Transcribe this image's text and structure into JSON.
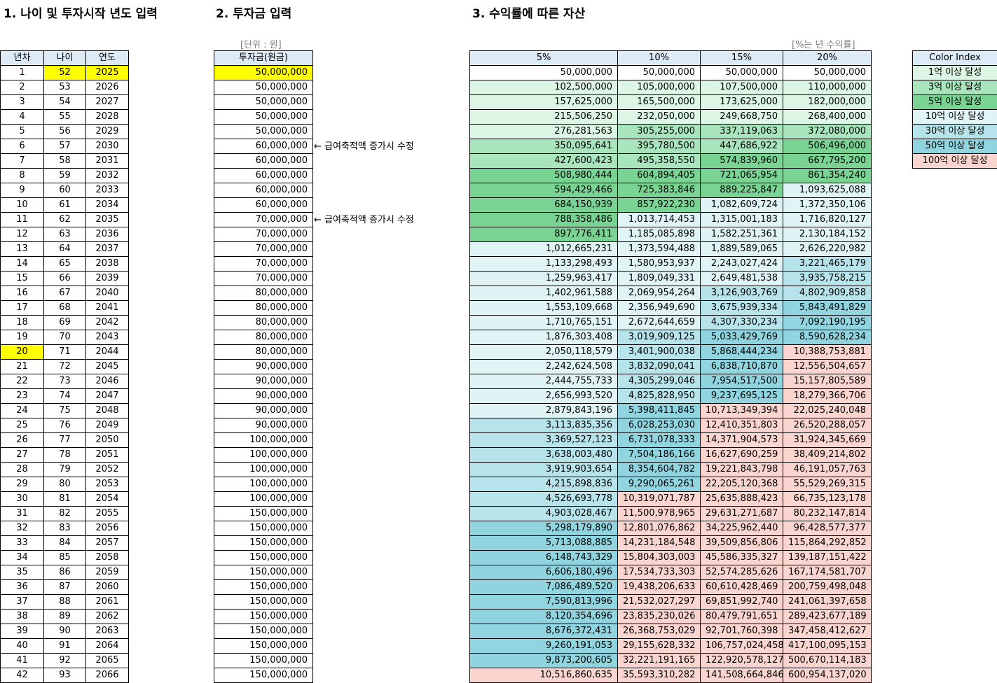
{
  "titles": {
    "section1": "1. 나이 및 투자시작 년도 입력",
    "section2": "2. 투자금 입력",
    "section3": "3. 수익률에 따른 자산"
  },
  "units": {
    "unit_won": "[단위 : 원]",
    "unit_rate": "[%는 년 수익률]"
  },
  "table1": {
    "headers": [
      "년차",
      "나이",
      "연도"
    ],
    "highlight_color": "#ffff00",
    "rows": [
      [
        "1",
        "52",
        "2025"
      ],
      [
        "2",
        "53",
        "2026"
      ],
      [
        "3",
        "54",
        "2027"
      ],
      [
        "4",
        "55",
        "2028"
      ],
      [
        "5",
        "56",
        "2029"
      ],
      [
        "6",
        "57",
        "2030"
      ],
      [
        "7",
        "58",
        "2031"
      ],
      [
        "8",
        "59",
        "2032"
      ],
      [
        "9",
        "60",
        "2033"
      ],
      [
        "10",
        "61",
        "2034"
      ],
      [
        "11",
        "62",
        "2035"
      ],
      [
        "12",
        "63",
        "2036"
      ],
      [
        "13",
        "64",
        "2037"
      ],
      [
        "14",
        "65",
        "2038"
      ],
      [
        "15",
        "66",
        "2039"
      ],
      [
        "16",
        "67",
        "2040"
      ],
      [
        "17",
        "68",
        "2041"
      ],
      [
        "18",
        "69",
        "2042"
      ],
      [
        "19",
        "70",
        "2043"
      ],
      [
        "20",
        "71",
        "2044"
      ],
      [
        "21",
        "72",
        "2045"
      ],
      [
        "22",
        "73",
        "2046"
      ],
      [
        "23",
        "74",
        "2047"
      ],
      [
        "24",
        "75",
        "2048"
      ],
      [
        "25",
        "76",
        "2049"
      ],
      [
        "26",
        "77",
        "2050"
      ],
      [
        "27",
        "78",
        "2051"
      ],
      [
        "28",
        "79",
        "2052"
      ],
      [
        "29",
        "80",
        "2053"
      ],
      [
        "30",
        "81",
        "2054"
      ],
      [
        "31",
        "82",
        "2055"
      ],
      [
        "32",
        "83",
        "2056"
      ],
      [
        "33",
        "84",
        "2057"
      ],
      [
        "34",
        "85",
        "2058"
      ],
      [
        "35",
        "86",
        "2059"
      ],
      [
        "36",
        "87",
        "2060"
      ],
      [
        "37",
        "88",
        "2061"
      ],
      [
        "38",
        "89",
        "2062"
      ],
      [
        "39",
        "90",
        "2063"
      ],
      [
        "40",
        "91",
        "2064"
      ],
      [
        "41",
        "92",
        "2065"
      ],
      [
        "42",
        "93",
        "2066"
      ]
    ]
  },
  "table2": {
    "header": "투자금(원금)",
    "values": [
      "50,000,000",
      "50,000,000",
      "50,000,000",
      "50,000,000",
      "50,000,000",
      "60,000,000",
      "60,000,000",
      "60,000,000",
      "60,000,000",
      "60,000,000",
      "70,000,000",
      "70,000,000",
      "70,000,000",
      "70,000,000",
      "70,000,000",
      "80,000,000",
      "80,000,000",
      "80,000,000",
      "80,000,000",
      "80,000,000",
      "90,000,000",
      "90,000,000",
      "90,000,000",
      "90,000,000",
      "90,000,000",
      "100,000,000",
      "100,000,000",
      "100,000,000",
      "100,000,000",
      "100,000,000",
      "150,000,000",
      "150,000,000",
      "150,000,000",
      "150,000,000",
      "150,000,000",
      "150,000,000",
      "150,000,000",
      "150,000,000",
      "150,000,000",
      "150,000,000",
      "150,000,000",
      "150,000,000"
    ],
    "notes": [
      "← 급여축적액 증가시 수정",
      "← 급여축적액 증가시 수정"
    ]
  },
  "table3": {
    "headers": [
      "5%",
      "10%",
      "15%",
      "20%"
    ],
    "rows": [
      [
        "50,000,000",
        "50,000,000",
        "50,000,000",
        "50,000,000"
      ],
      [
        "102,500,000",
        "105,000,000",
        "107,500,000",
        "110,000,000"
      ],
      [
        "157,625,000",
        "165,500,000",
        "173,625,000",
        "182,000,000"
      ],
      [
        "215,506,250",
        "232,050,000",
        "249,668,750",
        "268,400,000"
      ],
      [
        "276,281,563",
        "305,255,000",
        "337,119,063",
        "372,080,000"
      ],
      [
        "350,095,641",
        "395,780,500",
        "447,686,922",
        "506,496,000"
      ],
      [
        "427,600,423",
        "495,358,550",
        "574,839,960",
        "667,795,200"
      ],
      [
        "508,980,444",
        "604,894,405",
        "721,065,954",
        "861,354,240"
      ],
      [
        "594,429,466",
        "725,383,846",
        "889,225,847",
        "1,093,625,088"
      ],
      [
        "684,150,939",
        "857,922,230",
        "1,082,609,724",
        "1,372,350,106"
      ],
      [
        "788,358,486",
        "1,013,714,453",
        "1,315,001,183",
        "1,716,820,127"
      ],
      [
        "897,776,411",
        "1,185,085,898",
        "1,582,251,361",
        "2,130,184,152"
      ],
      [
        "1,012,665,231",
        "1,373,594,488",
        "1,889,589,065",
        "2,626,220,982"
      ],
      [
        "1,133,298,493",
        "1,580,953,937",
        "2,243,027,424",
        "3,221,465,179"
      ],
      [
        "1,259,963,417",
        "1,809,049,331",
        "2,649,481,538",
        "3,935,758,215"
      ],
      [
        "1,402,961,588",
        "2,069,954,264",
        "3,126,903,769",
        "4,802,909,858"
      ],
      [
        "1,553,109,668",
        "2,356,949,690",
        "3,675,939,334",
        "5,843,491,829"
      ],
      [
        "1,710,765,151",
        "2,672,644,659",
        "4,307,330,234",
        "7,092,190,195"
      ],
      [
        "1,876,303,408",
        "3,019,909,125",
        "5,033,429,769",
        "8,590,628,234"
      ],
      [
        "2,050,118,579",
        "3,401,900,038",
        "5,868,444,234",
        "10,388,753,881"
      ],
      [
        "2,242,624,508",
        "3,832,090,041",
        "6,838,710,870",
        "12,556,504,657"
      ],
      [
        "2,444,755,733",
        "4,305,299,046",
        "7,954,517,500",
        "15,157,805,589"
      ],
      [
        "2,656,993,520",
        "4,825,828,950",
        "9,237,695,125",
        "18,279,366,706"
      ],
      [
        "2,879,843,196",
        "5,398,411,845",
        "10,713,349,394",
        "22,025,240,048"
      ],
      [
        "3,113,835,356",
        "6,028,253,030",
        "12,410,351,803",
        "26,520,288,057"
      ],
      [
        "3,369,527,123",
        "6,731,078,333",
        "14,371,904,573",
        "31,924,345,669"
      ],
      [
        "3,638,003,480",
        "7,504,186,166",
        "16,627,690,259",
        "38,409,214,802"
      ],
      [
        "3,919,903,654",
        "8,354,604,782",
        "19,221,843,798",
        "46,191,057,763"
      ],
      [
        "4,215,898,836",
        "9,290,065,261",
        "22,205,120,368",
        "55,529,269,315"
      ],
      [
        "4,526,693,778",
        "10,319,071,787",
        "25,635,888,423",
        "66,735,123,178"
      ],
      [
        "4,903,028,467",
        "11,500,978,965",
        "29,631,271,687",
        "80,232,147,814"
      ],
      [
        "5,298,179,890",
        "12,801,076,862",
        "34,225,962,440",
        "96,428,577,377"
      ],
      [
        "5,713,088,885",
        "14,231,184,548",
        "39,509,856,806",
        "115,864,292,852"
      ],
      [
        "6,148,743,329",
        "15,804,303,003",
        "45,586,335,327",
        "139,187,151,422"
      ],
      [
        "6,606,180,496",
        "17,534,733,303",
        "52,574,285,626",
        "167,174,581,707"
      ],
      [
        "7,086,489,520",
        "19,438,206,633",
        "60,610,428,469",
        "200,759,498,048"
      ],
      [
        "7,590,813,996",
        "21,532,027,297",
        "69,851,992,740",
        "241,061,397,658"
      ],
      [
        "8,120,354,696",
        "23,835,230,026",
        "80,479,791,651",
        "289,423,677,189"
      ],
      [
        "8,676,372,431",
        "26,368,753,029",
        "92,701,760,398",
        "347,458,412,627"
      ],
      [
        "9,260,191,053",
        "29,155,628,332",
        "106,757,024,458",
        "417,100,095,153"
      ],
      [
        "9,873,200,605",
        "32,221,191,165",
        "122,920,578,127",
        "500,670,114,183"
      ],
      [
        "10,516,860,635",
        "35,593,310,282",
        "141,508,664,846",
        "600,954,137,020"
      ]
    ]
  },
  "legend": {
    "header": "Color Index",
    "items": [
      {
        "label": "1억 이상 달성",
        "color": "#dcf5e4"
      },
      {
        "label": "3억 이상 달성",
        "color": "#a8e4bc"
      },
      {
        "label": "5억 이상 달성",
        "color": "#79d493"
      },
      {
        "label": "10억 이상 달성",
        "color": "#e0f3f5"
      },
      {
        "label": "30억 이상 달성",
        "color": "#b7e4ea"
      },
      {
        "label": "50억 이상 달성",
        "color": "#8fd4de"
      },
      {
        "label": "100억 이상 달성",
        "color": "#fad5d0"
      }
    ]
  },
  "colors": {
    "header_bg": "#ddebf7",
    "grid_line": "#d4d4d4",
    "unit_text": "#7f7f7f"
  }
}
